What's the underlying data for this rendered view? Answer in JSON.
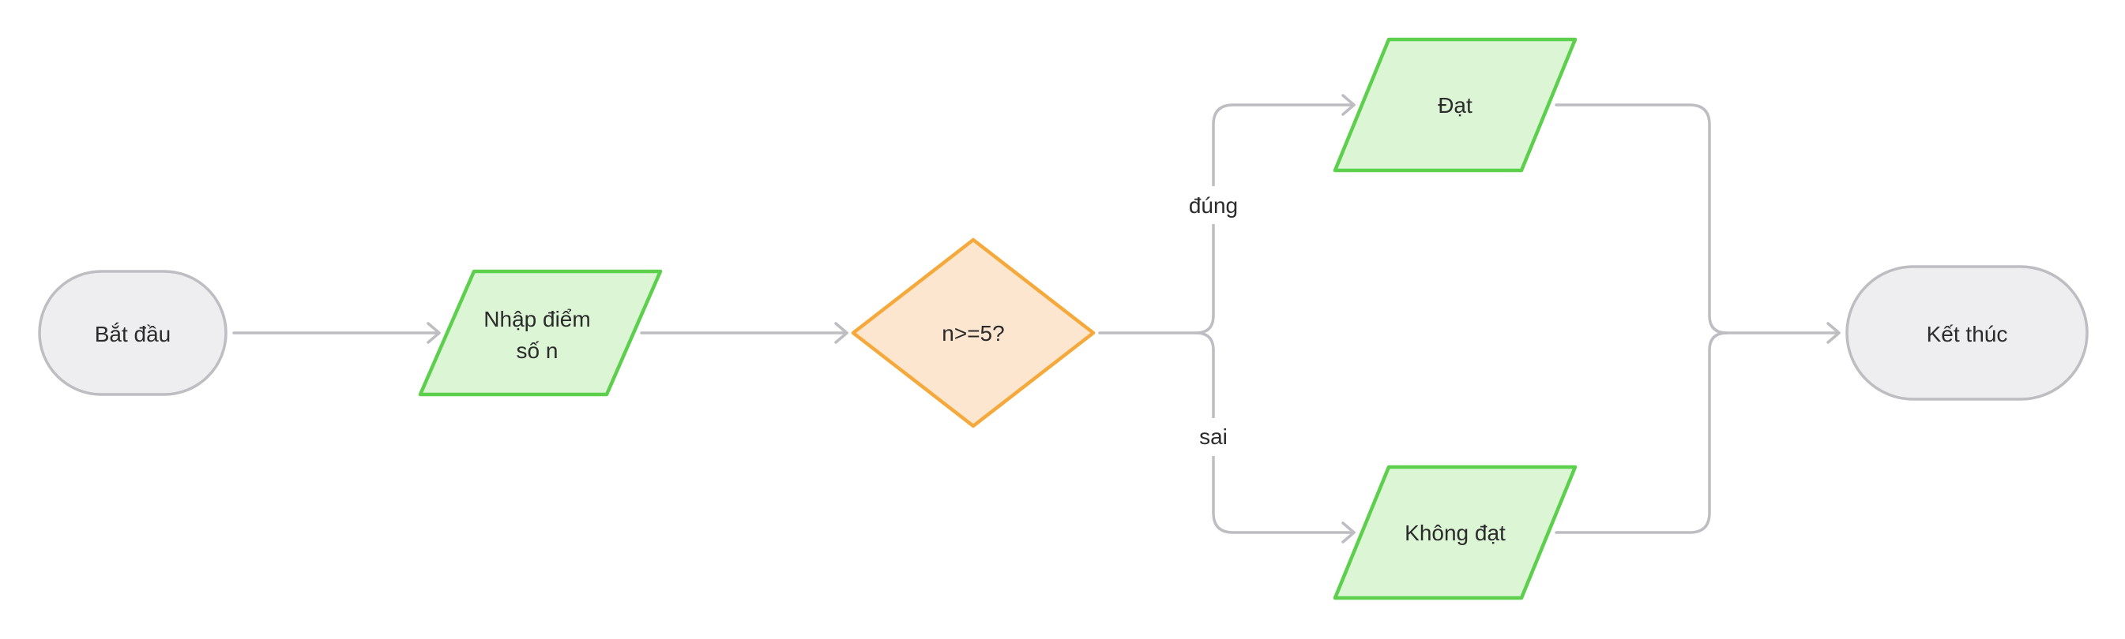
{
  "diagram": {
    "type": "flowchart",
    "nodes": {
      "start": {
        "label": "Bắt đầu"
      },
      "input": {
        "line1": "Nhập điểm",
        "line2": "số n"
      },
      "decision": {
        "label": "n>=5?"
      },
      "pass": {
        "label": "Đạt"
      },
      "fail": {
        "label": "Không đạt"
      },
      "end": {
        "label": "Kết thúc"
      }
    },
    "edges": {
      "true_label": "đúng",
      "false_label": "sai"
    },
    "colors": {
      "terminal_fill": "#eeeef0",
      "terminal_stroke": "#bdbdc2",
      "io_fill": "#dbf5d5",
      "io_stroke": "#5ccf4c",
      "decision_fill": "#fde6cf",
      "decision_stroke": "#f6a93b",
      "edge": "#bdbdc2"
    }
  }
}
